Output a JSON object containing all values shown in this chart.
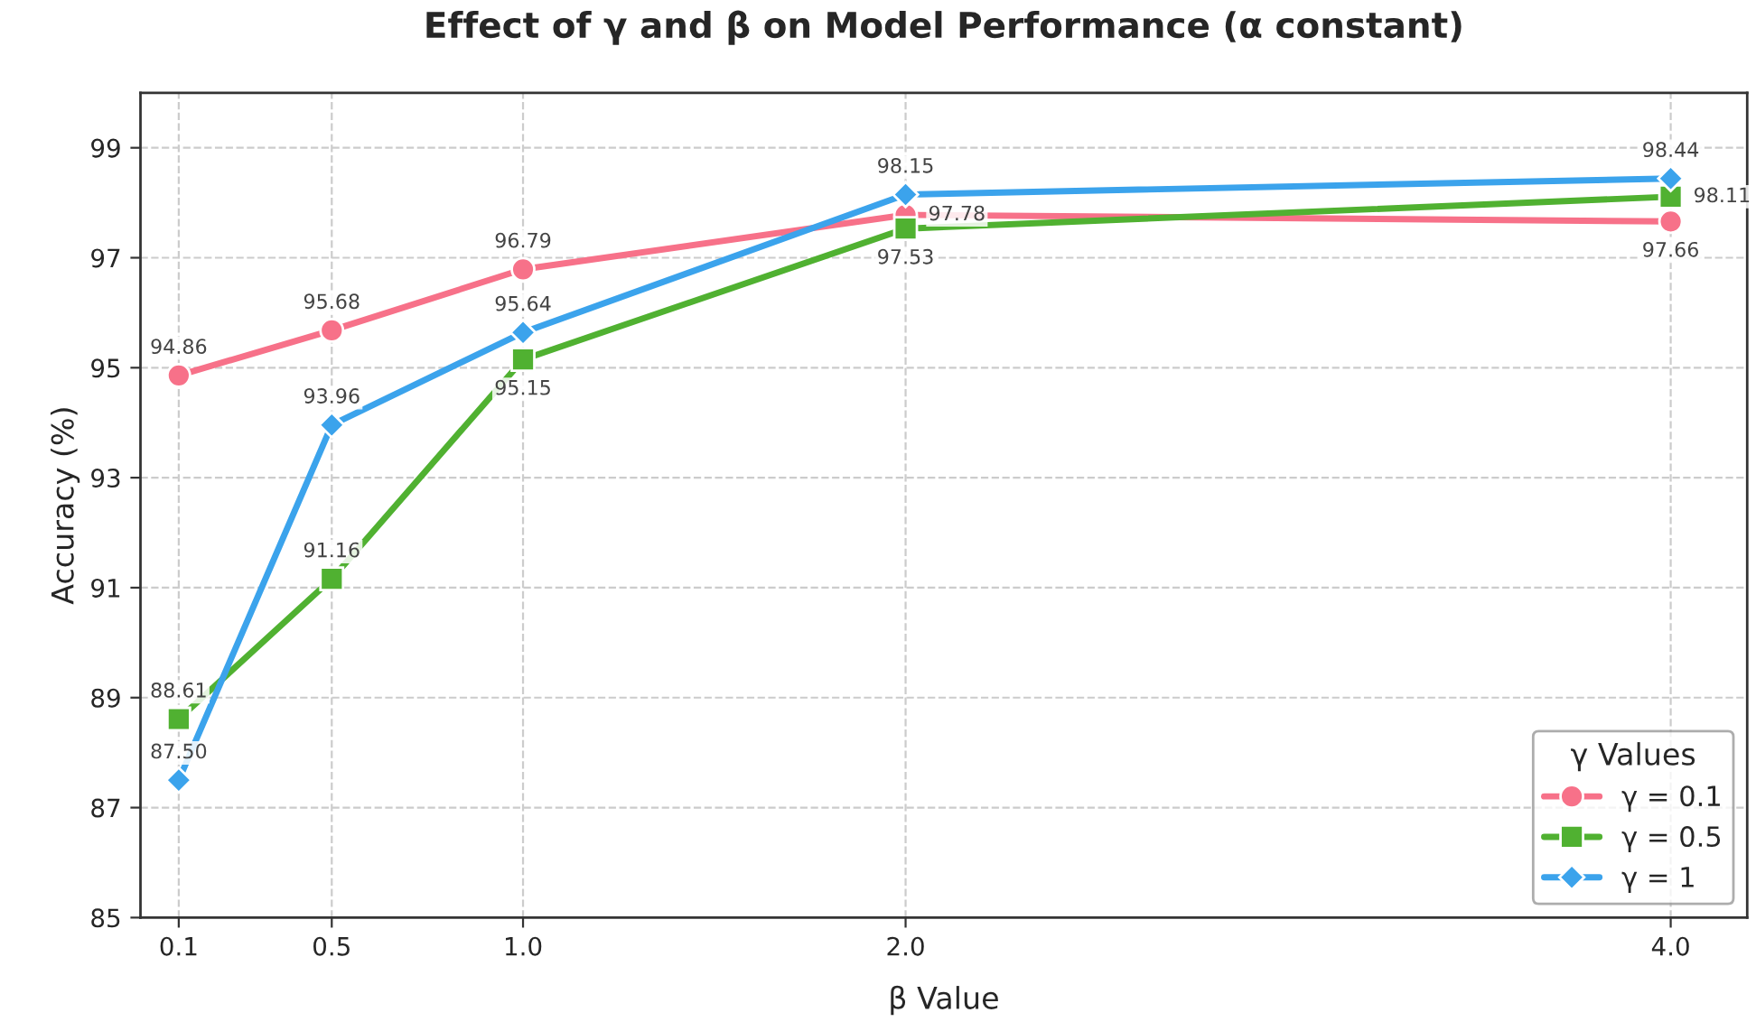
{
  "chart_data": {
    "type": "line",
    "title": "Effect of γ and β on Model Performance (α constant)",
    "xlabel": "β Value",
    "ylabel": "Accuracy (%)",
    "legend_title": "γ Values",
    "x": [
      0.1,
      0.5,
      1.0,
      2.0,
      4.0
    ],
    "series": [
      {
        "name": "γ = 0.1",
        "color": "#f77189",
        "marker": "circle",
        "values": [
          94.86,
          95.68,
          96.79,
          97.78,
          97.66
        ],
        "value_labels": [
          "94.86",
          "95.68",
          "96.79",
          "97.78",
          "97.66"
        ]
      },
      {
        "name": "γ = 0.5",
        "color": "#50b131",
        "marker": "square",
        "values": [
          88.61,
          91.16,
          95.15,
          97.53,
          98.11
        ],
        "value_labels": [
          "88.61",
          "91.16",
          "95.15",
          "97.53",
          "98.11"
        ]
      },
      {
        "name": "γ = 1",
        "color": "#3ba3ec",
        "marker": "diamond",
        "values": [
          87.5,
          93.96,
          95.64,
          98.15,
          98.44
        ],
        "value_labels": [
          "87.50",
          "93.96",
          "95.64",
          "98.15",
          "98.44"
        ]
      }
    ],
    "xlim": [
      0,
      4.2
    ],
    "xticks": [
      0.1,
      0.5,
      {
        "value": 1.0,
        "label": "1.0"
      },
      {
        "value": 2.0,
        "label": "2.0"
      },
      {
        "value": 4.0,
        "label": "4.0"
      }
    ],
    "ylim": [
      85,
      100
    ],
    "yticks": [
      85,
      87,
      89,
      91,
      93,
      95,
      97,
      99
    ],
    "grid": true,
    "legend": "bottom right",
    "line_style": "solid"
  }
}
